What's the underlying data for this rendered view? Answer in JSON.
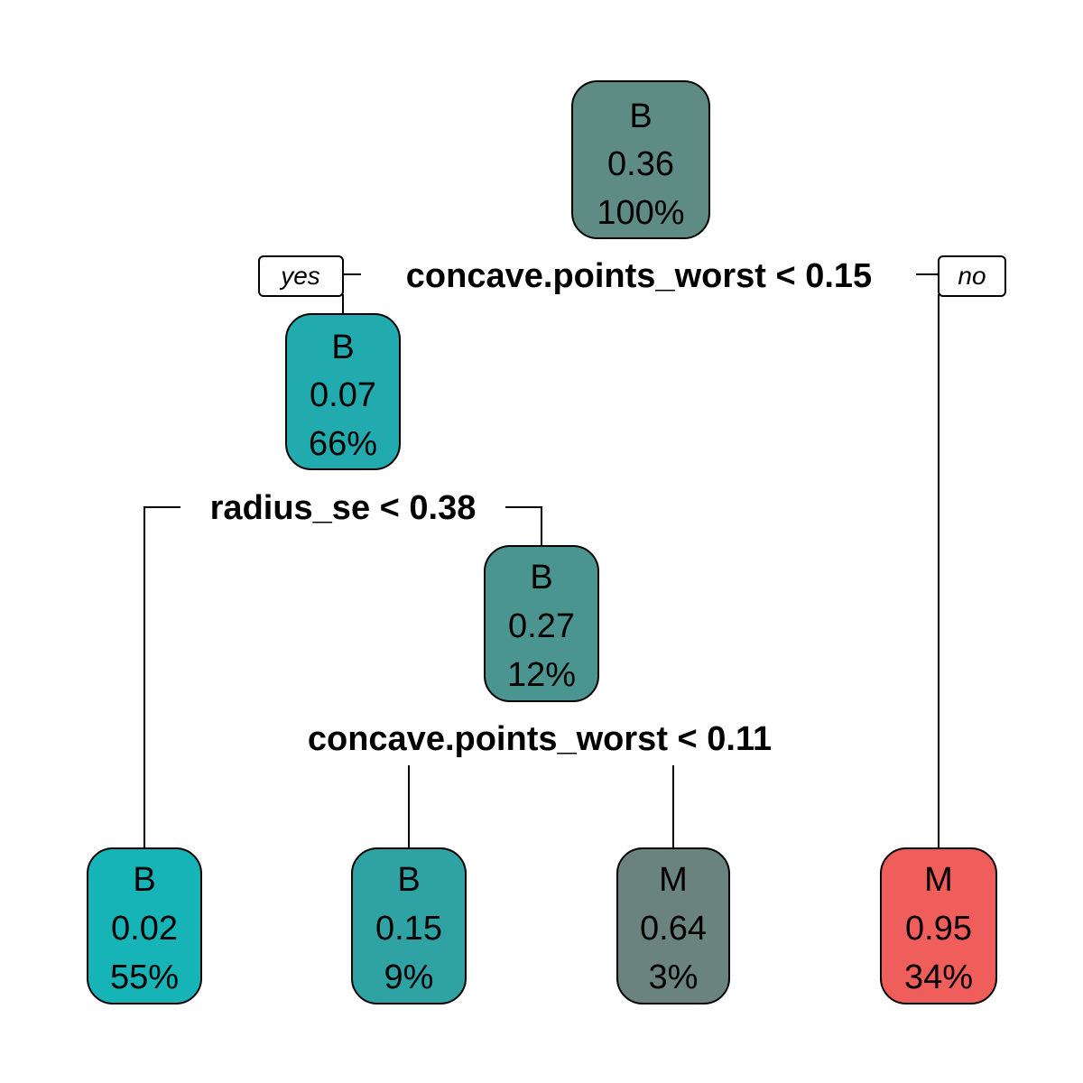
{
  "tree": {
    "branch_labels": {
      "yes": "yes",
      "no": "no"
    },
    "nodes": {
      "root": {
        "class": "B",
        "prob": "0.36",
        "pct": "100%",
        "color": "#5E8C84"
      },
      "n2": {
        "class": "B",
        "prob": "0.07",
        "pct": "66%",
        "color": "#21ABAE"
      },
      "n5": {
        "class": "B",
        "prob": "0.27",
        "pct": "12%",
        "color": "#4B9590"
      },
      "leaf1": {
        "class": "B",
        "prob": "0.02",
        "pct": "55%",
        "color": "#17B4B7"
      },
      "leaf2": {
        "class": "B",
        "prob": "0.15",
        "pct": "9%",
        "color": "#2FA2A3"
      },
      "leaf3": {
        "class": "M",
        "prob": "0.64",
        "pct": "3%",
        "color": "#6B837E"
      },
      "leaf4": {
        "class": "M",
        "prob": "0.95",
        "pct": "34%",
        "color": "#F05E5B"
      }
    },
    "splits": {
      "root": "concave.points_worst < 0.15",
      "n2": "radius_se < 0.38",
      "n5": "concave.points_worst < 0.11"
    }
  }
}
